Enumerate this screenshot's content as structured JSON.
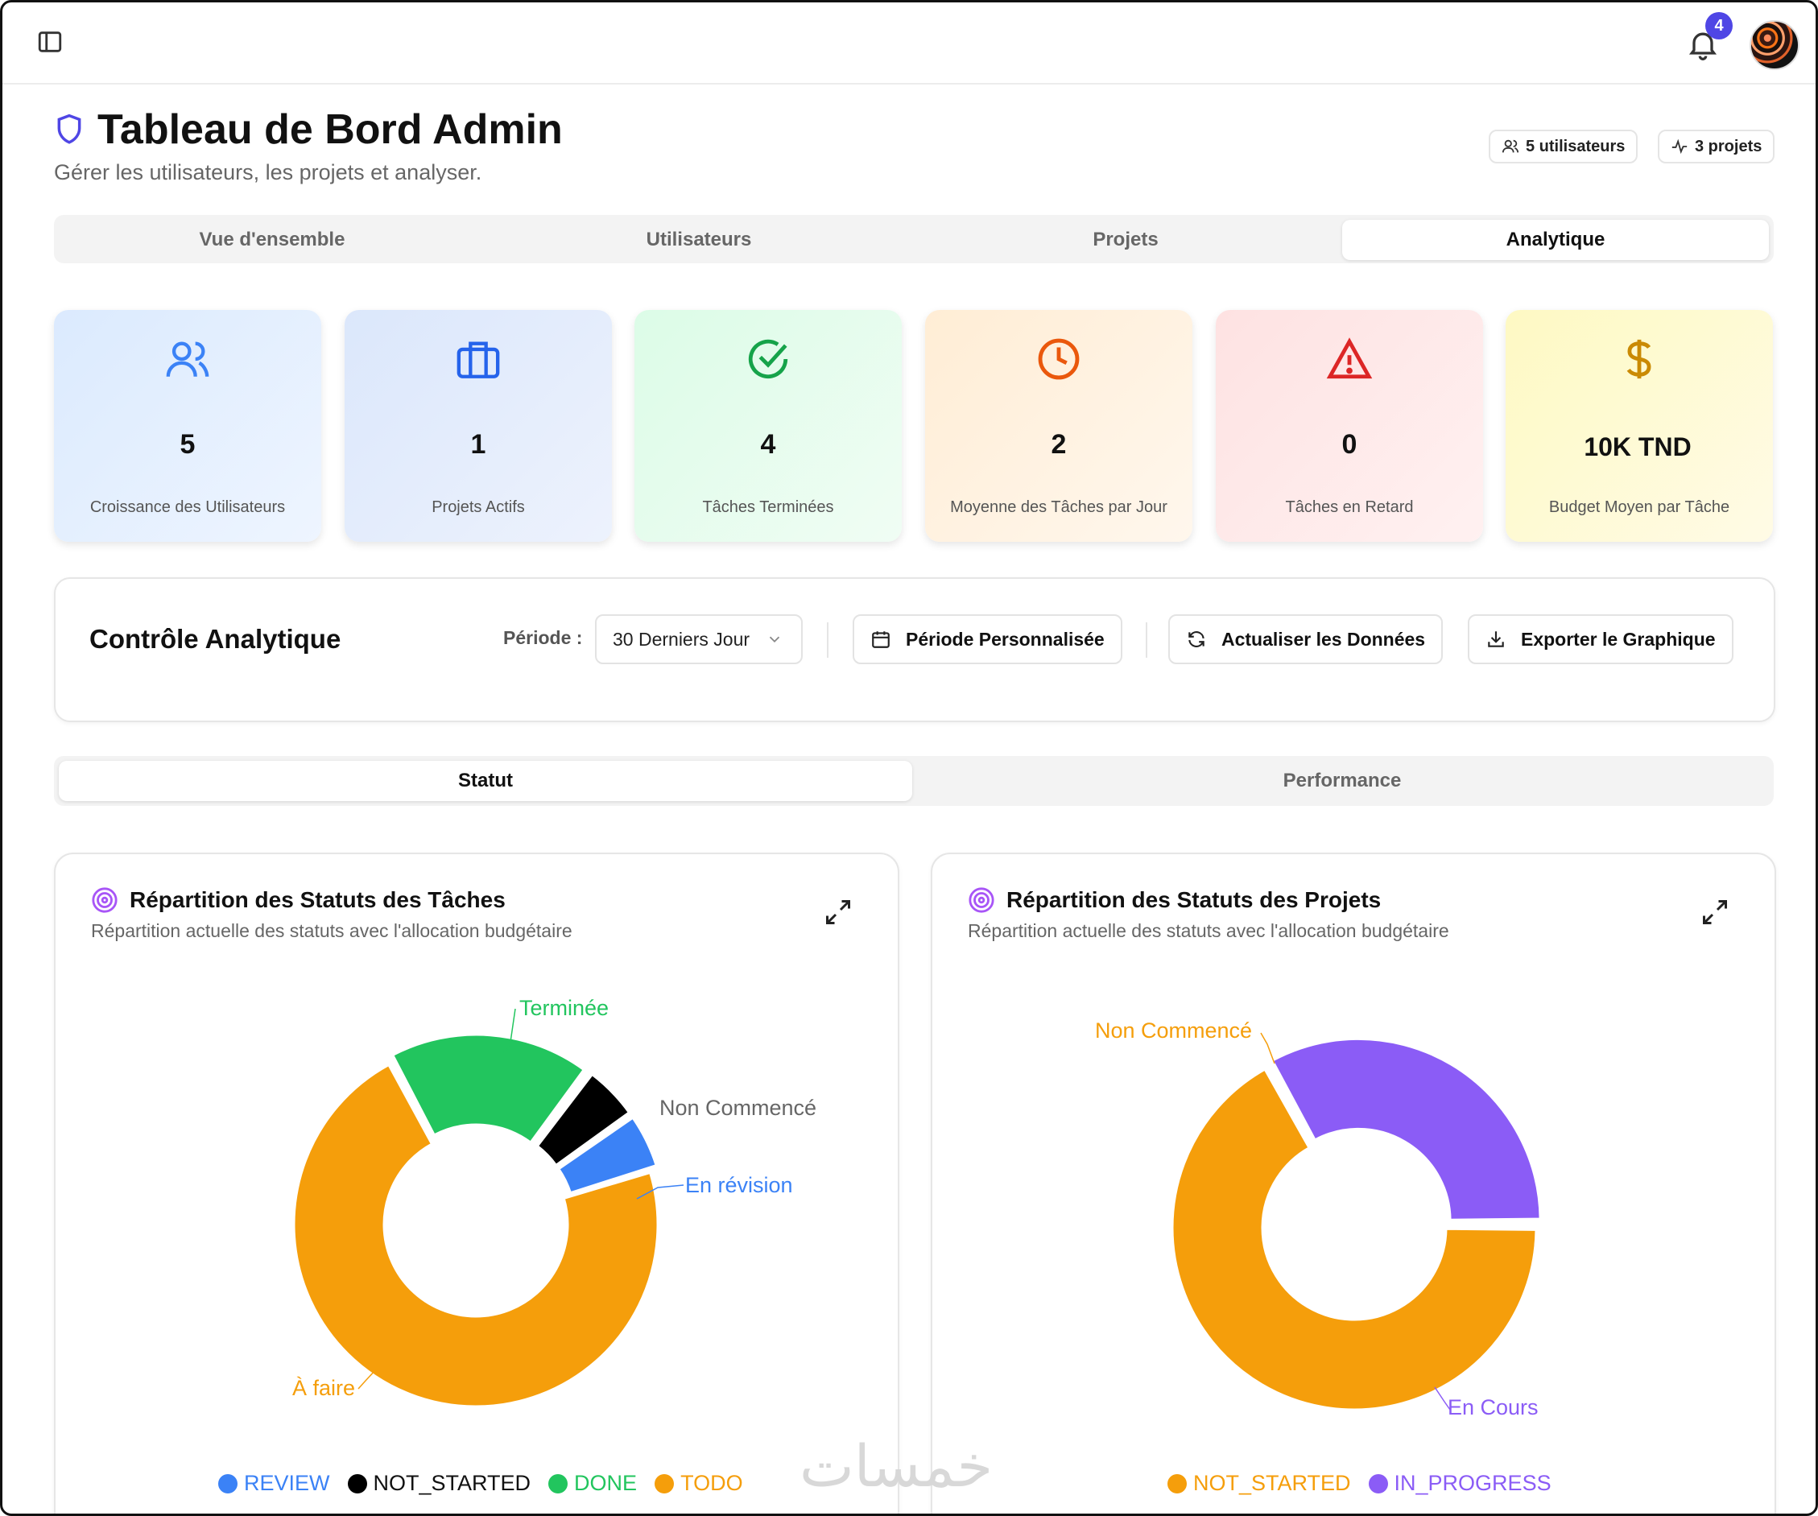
{
  "header": {
    "notification_count": "4"
  },
  "page": {
    "title": "Tableau de Bord Admin",
    "subtitle": "Gérer les utilisateurs, les projets et analyser.",
    "chips": {
      "users": "5 utilisateurs",
      "projects": "3 projets"
    }
  },
  "tabs": [
    "Vue d'ensemble",
    "Utilisateurs",
    "Projets",
    "Analytique"
  ],
  "active_tab": "Analytique",
  "stats": [
    {
      "value": "5",
      "label": "Croissance des Utilisateurs",
      "icon": "users-icon",
      "color": "#3b82f6",
      "bg": "#dbeafe"
    },
    {
      "value": "1",
      "label": "Projets Actifs",
      "icon": "briefcase-icon",
      "color": "#2563eb",
      "bg": "#dbe7fb"
    },
    {
      "value": "4",
      "label": "Tâches Terminées",
      "icon": "check-circle-icon",
      "color": "#16a34a",
      "bg": "#dcfce7"
    },
    {
      "value": "2",
      "label": "Moyenne des Tâches par Jour",
      "icon": "clock-icon",
      "color": "#ea580c",
      "bg": "#ffedd5"
    },
    {
      "value": "0",
      "label": "Tâches en Retard",
      "icon": "alert-triangle-icon",
      "color": "#dc2626",
      "bg": "#fee2e2"
    },
    {
      "value": "10K TND",
      "label": "Budget Moyen par Tâche",
      "icon": "dollar-icon",
      "color": "#ca8a04",
      "bg": "#fef9c3"
    }
  ],
  "controls": {
    "title": "Contrôle Analytique",
    "period_label": "Période :",
    "period_value": "30 Derniers Jour",
    "custom_period": "Période Personnalisée",
    "refresh": "Actualiser les Données",
    "export": "Exporter le Graphique"
  },
  "subtabs": [
    "Statut",
    "Performance"
  ],
  "active_subtab": "Statut",
  "charts": {
    "tasks": {
      "title": "Répartition des Statuts des Tâches",
      "subtitle": "Répartition actuelle des statuts avec l'allocation budgétaire",
      "labels": {
        "done": "Terminée",
        "not_started": "Non Commencé",
        "review": "En révision",
        "todo": "À faire"
      },
      "legend": [
        "REVIEW",
        "NOT_STARTED",
        "DONE",
        "TODO"
      ]
    },
    "projects": {
      "title": "Répartition des Statuts des Projets",
      "subtitle": "Répartition actuelle des statuts avec l'allocation budgétaire",
      "labels": {
        "not_started": "Non Commencé",
        "in_progress": "En Cours"
      },
      "legend": [
        "NOT_STARTED",
        "IN_PROGRESS"
      ]
    }
  },
  "chart_data": [
    {
      "type": "pie",
      "title": "Répartition des Statuts des Tâches",
      "categories": [
        "DONE",
        "NOT_STARTED",
        "REVIEW",
        "TODO"
      ],
      "values": [
        18,
        5,
        5,
        72
      ],
      "colors": [
        "#22c55e",
        "#000000",
        "#3b82f6",
        "#f59e0b"
      ],
      "legend": "bottom"
    },
    {
      "type": "pie",
      "title": "Répartition des Statuts des Projets",
      "categories": [
        "NOT_STARTED",
        "IN_PROGRESS"
      ],
      "values": [
        67,
        33
      ],
      "colors": [
        "#f59e0b",
        "#8b5cf6"
      ],
      "legend": "bottom"
    }
  ],
  "watermark": "خمسات"
}
